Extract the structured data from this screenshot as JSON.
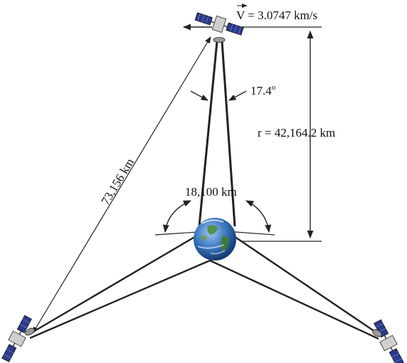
{
  "labels": {
    "velocity_symbol": "V",
    "velocity_value": " = 3.0747 km/s",
    "angle": "17.4",
    "angle_unit": "o",
    "radius": "r = 42,164.2 km",
    "chord": "73,156 km",
    "coverage": "18,100 km"
  },
  "colors": {
    "line": "#222222",
    "ocean": "#2e6fb8",
    "land": "#3f7d2c",
    "panel": "#2b3a8c"
  }
}
